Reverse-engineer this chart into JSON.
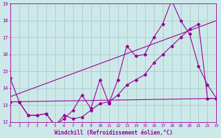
{
  "xlabel": "Windchill (Refroidissement éolien,°C)",
  "x": [
    0,
    1,
    2,
    3,
    4,
    5,
    6,
    7,
    8,
    9,
    10,
    11,
    12,
    13,
    14,
    15,
    16,
    17,
    18,
    19,
    20,
    21,
    22,
    23
  ],
  "line1": [
    14.6,
    13.2,
    12.4,
    12.4,
    12.5,
    11.8,
    12.2,
    12.7,
    13.6,
    12.8,
    14.5,
    13.1,
    14.5,
    16.5,
    15.9,
    16.0,
    17.0,
    17.8,
    19.2,
    18.0,
    17.2,
    15.3,
    14.2,
    13.4
  ],
  "line2": [
    13.2,
    13.2,
    12.4,
    12.4,
    12.5,
    11.8,
    12.4,
    12.2,
    12.3,
    12.7,
    13.1,
    13.2,
    13.6,
    14.2,
    14.5,
    14.8,
    15.5,
    16.0,
    16.5,
    17.0,
    17.5,
    17.8,
    13.4,
    13.4
  ],
  "trend1_x": [
    0,
    23
  ],
  "trend1_y": [
    13.2,
    13.4
  ],
  "trend2_x": [
    0,
    23
  ],
  "trend2_y": [
    13.5,
    18.0
  ],
  "xlim": [
    0,
    23
  ],
  "ylim": [
    12,
    19
  ],
  "yticks": [
    12,
    13,
    14,
    15,
    16,
    17,
    18,
    19
  ],
  "xticks": [
    0,
    1,
    2,
    3,
    4,
    5,
    6,
    7,
    8,
    9,
    10,
    11,
    12,
    13,
    14,
    15,
    16,
    17,
    18,
    19,
    20,
    21,
    22,
    23
  ],
  "color": "#990099",
  "bg_color": "#cce8e8",
  "grid_color": "#aacccc"
}
